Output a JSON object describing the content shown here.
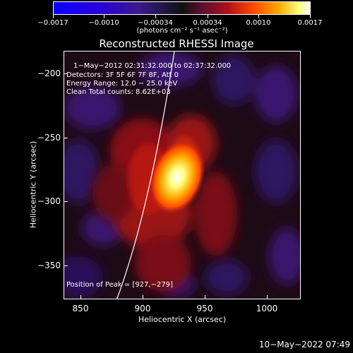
{
  "colorbar": {
    "tick_labels": [
      "−0.0017",
      "−0.0010",
      "−0.00034",
      "0.00034",
      "0.0010",
      "0.0017"
    ],
    "units": "(photons cm⁻² s⁻¹ asec⁻²)"
  },
  "title": "Reconstructed RHESSI Image",
  "annotations": {
    "time_range": "1−May−2012 02:31:32.000 to 02:37:32.000",
    "detectors": "Detectors: 3F 5F 6F 7F 8F, Att 0",
    "energy_range": "Energy Range: 12.0 − 25.0 keV",
    "clean_counts": "Clean     Total counts: 8.62E+03",
    "peak": "Position of Peak = [927,−279]"
  },
  "axes": {
    "x_label": "Heliocentric X (arcsec)",
    "y_label": "Heliocentric Y (arcsec)",
    "x_ticks": [
      "850",
      "900",
      "950",
      "1000"
    ],
    "y_ticks": [
      "−200",
      "−250",
      "−300",
      "−350"
    ]
  },
  "footer_date": "10−May−2022 07:49",
  "colors": {
    "negative": "#2a00d8",
    "positive_low": "#b0101a",
    "positive_high": "#ffff80",
    "peak": "#ffffff"
  }
}
